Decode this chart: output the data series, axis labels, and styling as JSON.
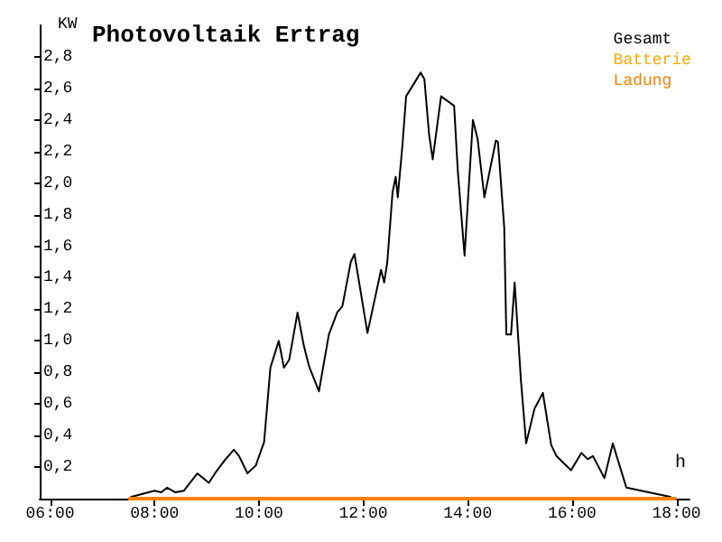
{
  "chart_data": {
    "type": "line",
    "title": "Photovoltaik Ertrag",
    "ylabel": "KW",
    "xlabel": "h",
    "xlim": [
      5.8,
      18.25
    ],
    "ylim": [
      0,
      3
    ],
    "xticks": [
      {
        "value": 6,
        "label": "06:00"
      },
      {
        "value": 8,
        "label": "08:00"
      },
      {
        "value": 10,
        "label": "10:00"
      },
      {
        "value": 12,
        "label": "12:00"
      },
      {
        "value": 14,
        "label": "14:00"
      },
      {
        "value": 16,
        "label": "16:00"
      },
      {
        "value": 18,
        "label": "18:00"
      }
    ],
    "yticks": [
      {
        "value": 0.2,
        "label": "0,2"
      },
      {
        "value": 0.4,
        "label": "0,4"
      },
      {
        "value": 0.6,
        "label": "0,6"
      },
      {
        "value": 0.8,
        "label": "0,8"
      },
      {
        "value": 1.0,
        "label": "1,0"
      },
      {
        "value": 1.2,
        "label": "1,2"
      },
      {
        "value": 1.4,
        "label": "1,4"
      },
      {
        "value": 1.6,
        "label": "1,6"
      },
      {
        "value": 1.8,
        "label": "1,8"
      },
      {
        "value": 2.0,
        "label": "2,0"
      },
      {
        "value": 2.2,
        "label": "2,2"
      },
      {
        "value": 2.4,
        "label": "2,4"
      },
      {
        "value": 2.6,
        "label": "2,6"
      },
      {
        "value": 2.8,
        "label": "2,8"
      }
    ],
    "grid": false,
    "legend": "top right",
    "marker": "none",
    "line_style": "solid",
    "series": [
      {
        "name": "Gesamt",
        "color": "#000000",
        "x": [
          7.54,
          8.0,
          8.13,
          8.24,
          8.4,
          8.56,
          8.82,
          9.04,
          9.2,
          9.36,
          9.52,
          9.62,
          9.78,
          9.94,
          10.1,
          10.22,
          10.38,
          10.48,
          10.58,
          10.74,
          10.86,
          10.96,
          11.15,
          11.34,
          11.5,
          11.6,
          11.76,
          11.83,
          12.08,
          12.34,
          12.4,
          12.46,
          12.56,
          12.62,
          12.66,
          12.75,
          12.82,
          13.1,
          13.17,
          13.26,
          13.33,
          13.49,
          13.74,
          13.81,
          13.94,
          14.1,
          14.19,
          14.32,
          14.54,
          14.58,
          14.7,
          14.74,
          14.83,
          14.9,
          15.02,
          15.12,
          15.28,
          15.44,
          15.6,
          15.7,
          15.98,
          16.18,
          16.3,
          16.4,
          16.62,
          16.78,
          17.04,
          17.9
        ],
        "values": [
          0.01,
          0.05,
          0.04,
          0.07,
          0.04,
          0.05,
          0.16,
          0.1,
          0.18,
          0.25,
          0.31,
          0.27,
          0.16,
          0.21,
          0.36,
          0.83,
          1.0,
          0.83,
          0.88,
          1.18,
          0.97,
          0.84,
          0.68,
          1.04,
          1.18,
          1.22,
          1.5,
          1.55,
          1.05,
          1.45,
          1.37,
          1.5,
          1.94,
          2.04,
          1.91,
          2.24,
          2.55,
          2.7,
          2.66,
          2.31,
          2.15,
          2.55,
          2.49,
          2.08,
          1.54,
          2.4,
          2.28,
          1.91,
          2.27,
          2.26,
          1.72,
          1.04,
          1.04,
          1.37,
          0.75,
          0.35,
          0.57,
          0.67,
          0.34,
          0.27,
          0.18,
          0.29,
          0.25,
          0.27,
          0.13,
          0.35,
          0.07,
          0.01
        ]
      },
      {
        "name": "Batterie",
        "color": "#ffaa00"
      },
      {
        "name": "Ladung",
        "color": "#ff8000",
        "x": [
          7.5,
          18.0
        ],
        "values": [
          0,
          0
        ]
      }
    ]
  }
}
